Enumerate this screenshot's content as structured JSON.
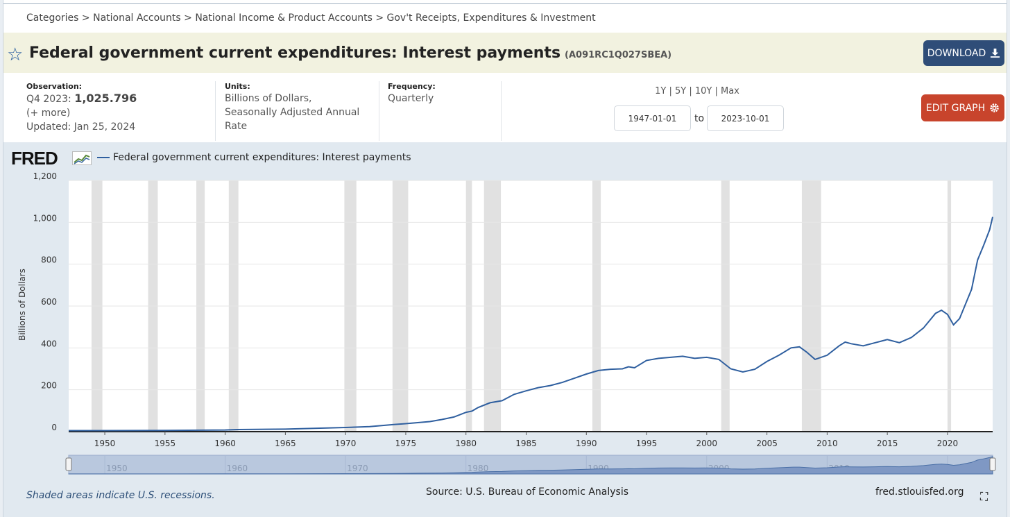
{
  "breadcrumb": "Categories > National Accounts > National Income & Product Accounts > Gov't Receipts, Expenditures & Investment",
  "series": {
    "title": "Federal government current expenditures: Interest payments",
    "id": "(A091RC1Q027SBEA)"
  },
  "buttons": {
    "download": "DOWNLOAD",
    "edit_graph": "EDIT GRAPH"
  },
  "observation": {
    "label": "Observation:",
    "period": "Q4 2023:",
    "value": "1,025.796",
    "more": "(+ more)",
    "updated": "Updated: Jan 25, 2024"
  },
  "units": {
    "label": "Units:",
    "line1": "Billions of Dollars,",
    "line2": "Seasonally Adjusted Annual",
    "line3": "Rate"
  },
  "frequency": {
    "label": "Frequency:",
    "value": "Quarterly"
  },
  "range_links": [
    "1Y",
    "5Y",
    "10Y",
    "Max"
  ],
  "date_range": {
    "start": "1947-01-01",
    "to": "to",
    "end": "2023-10-01"
  },
  "chart": {
    "logo": "FRED",
    "footnote": "Shaded areas indicate U.S. recessions.",
    "source": "Source: U.S. Bureau of Economic Analysis",
    "site": "fred.stlouisfed.org"
  },
  "colors": {
    "line": "#2f5f9f",
    "recession": "#e1e1e1",
    "download_button": "#2f4d78",
    "edit_button": "#c8442c",
    "title_bar": "#f2f2e0",
    "chart_bg": "#e1e9f0"
  },
  "icons": {
    "star": "star-icon",
    "download": "download-icon",
    "gear": "gear-icon",
    "expand": "expand-icon"
  },
  "chart_data": {
    "type": "line",
    "title": "Federal government current expenditures: Interest payments",
    "ylabel": "Billions of Dollars",
    "xlabel": "",
    "ylim": [
      0,
      1200
    ],
    "yticks": [
      0,
      200,
      400,
      600,
      800,
      1000,
      1200
    ],
    "ytick_labels": [
      "0",
      "200",
      "400",
      "600",
      "800",
      "1,000",
      "1,200"
    ],
    "xlim": [
      1947.0,
      2023.75
    ],
    "xticks": [
      1950,
      1955,
      1960,
      1965,
      1970,
      1975,
      1980,
      1985,
      1990,
      1995,
      2000,
      2005,
      2010,
      2015,
      2020
    ],
    "navigator_ticks": [
      1950,
      1960,
      1970,
      1980,
      1990,
      2000,
      2010,
      2020
    ],
    "grid": true,
    "legend": "top-left",
    "recessions": [
      [
        1948.9,
        1949.8
      ],
      [
        1953.6,
        1954.4
      ],
      [
        1957.6,
        1958.3
      ],
      [
        1960.3,
        1961.1
      ],
      [
        1969.9,
        1970.9
      ],
      [
        1973.9,
        1975.2
      ],
      [
        1980.0,
        1980.5
      ],
      [
        1981.5,
        1982.9
      ],
      [
        1990.5,
        1991.2
      ],
      [
        2001.2,
        2001.9
      ],
      [
        2007.9,
        2009.5
      ],
      [
        2020.0,
        2020.3
      ]
    ],
    "series": [
      {
        "name": "Federal government current expenditures: Interest payments",
        "x": [
          1947,
          1950,
          1955,
          1960,
          1961,
          1965,
          1970,
          1971,
          1972,
          1974,
          1975,
          1976,
          1977,
          1978,
          1979,
          1980,
          1980.5,
          1981,
          1982,
          1983,
          1984,
          1985,
          1986,
          1987,
          1988,
          1989,
          1990,
          1991,
          1992,
          1993,
          1993.5,
          1994,
          1995,
          1996,
          1997,
          1998,
          1999,
          2000,
          2001,
          2002,
          2003,
          2004,
          2005,
          2006,
          2007,
          2007.7,
          2008.3,
          2009,
          2010,
          2011,
          2011.5,
          2012,
          2013,
          2014,
          2015,
          2016,
          2017,
          2018,
          2019,
          2019.5,
          2020,
          2020.5,
          2021,
          2022,
          2022.5,
          2023,
          2023.5,
          2023.75
        ],
        "values": [
          5,
          5,
          6,
          8,
          10,
          12,
          20,
          22,
          24,
          34,
          38,
          43,
          48,
          58,
          70,
          92,
          98,
          115,
          138,
          148,
          178,
          195,
          210,
          220,
          235,
          255,
          275,
          292,
          298,
          300,
          310,
          305,
          340,
          350,
          355,
          360,
          350,
          355,
          345,
          300,
          285,
          298,
          335,
          365,
          400,
          405,
          380,
          345,
          365,
          410,
          428,
          420,
          410,
          425,
          440,
          425,
          450,
          495,
          565,
          580,
          560,
          510,
          540,
          680,
          820,
          890,
          965,
          1025.796
        ]
      }
    ]
  }
}
